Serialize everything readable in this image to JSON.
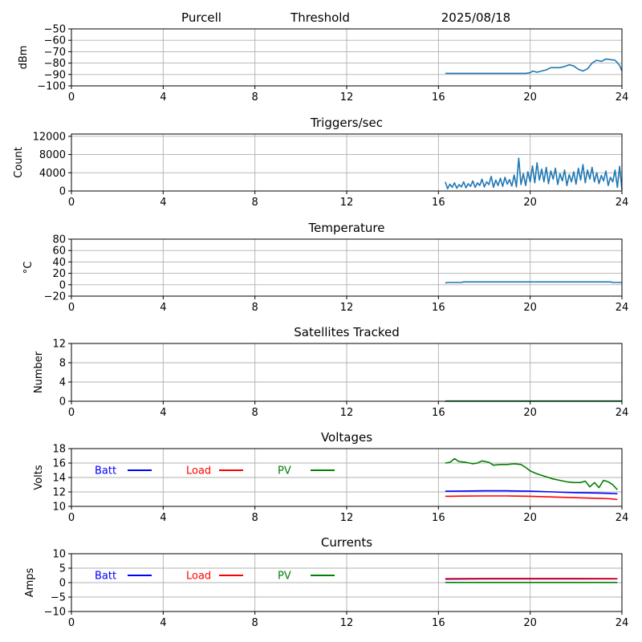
{
  "header": {
    "station": "Purcell",
    "mode": "Threshold",
    "date": "2025/08/18"
  },
  "colors": {
    "series": "#1f77b4",
    "batt": "#0000ff",
    "load": "#ff0000",
    "pv": "#008000",
    "grid": "#b0b0b0",
    "axes": "#000000"
  },
  "chart_data": [
    {
      "id": "signal",
      "type": "line",
      "title": "",
      "xlabel": "",
      "ylabel": "dBm",
      "xlim": [
        0,
        24
      ],
      "ylim": [
        -100,
        -50
      ],
      "xticks": [
        0,
        4,
        8,
        12,
        16,
        20,
        24
      ],
      "xtick_labels": [
        "0",
        "4",
        "8",
        "12",
        "16",
        "20",
        "24"
      ],
      "yticks": [
        -100,
        -90,
        -80,
        -70,
        -60,
        -50
      ],
      "ytick_labels": [
        "−100",
        "−90",
        "−80",
        "−70",
        "−60",
        "−50"
      ],
      "grid": true,
      "series": [
        {
          "color": "#1f77b4",
          "x": [
            16.3,
            16.6,
            17.0,
            17.5,
            18.0,
            18.5,
            19.0,
            19.5,
            19.8,
            20.0,
            20.1,
            20.3,
            20.5,
            20.7,
            20.9,
            21.1,
            21.3,
            21.5,
            21.7,
            21.9,
            22.1,
            22.3,
            22.5,
            22.7,
            22.9,
            23.1,
            23.3,
            23.5,
            23.7,
            23.9,
            24.0
          ],
          "y": [
            -89,
            -89,
            -89,
            -89,
            -89,
            -89,
            -89,
            -89,
            -89,
            -88.5,
            -87,
            -88,
            -87,
            -86,
            -84,
            -84,
            -84,
            -83,
            -81.5,
            -82.5,
            -85.5,
            -87,
            -85,
            -80,
            -77.5,
            -78.5,
            -76.5,
            -77,
            -77.5,
            -82,
            -87
          ]
        }
      ]
    },
    {
      "id": "triggers",
      "type": "line",
      "title": "Triggers/sec",
      "xlabel": "",
      "ylabel": "Count",
      "xlim": [
        0,
        24
      ],
      "ylim": [
        0,
        12500
      ],
      "xticks": [
        0,
        4,
        8,
        12,
        16,
        20,
        24
      ],
      "xtick_labels": [
        "0",
        "4",
        "8",
        "12",
        "16",
        "20",
        "24"
      ],
      "yticks": [
        0,
        4000,
        8000,
        12000
      ],
      "ytick_labels": [
        "0",
        "4000",
        "8000",
        "12000"
      ],
      "grid": true,
      "series": [
        {
          "color": "#1f77b4",
          "x": [
            16.3,
            16.4,
            16.5,
            16.6,
            16.7,
            16.8,
            16.9,
            17.0,
            17.1,
            17.2,
            17.3,
            17.4,
            17.5,
            17.6,
            17.7,
            17.8,
            17.9,
            18.0,
            18.1,
            18.2,
            18.3,
            18.4,
            18.5,
            18.6,
            18.7,
            18.8,
            18.9,
            19.0,
            19.1,
            19.2,
            19.3,
            19.4,
            19.5,
            19.6,
            19.7,
            19.8,
            19.9,
            20.0,
            20.1,
            20.2,
            20.3,
            20.4,
            20.5,
            20.6,
            20.7,
            20.8,
            20.9,
            21.0,
            21.1,
            21.2,
            21.3,
            21.4,
            21.5,
            21.6,
            21.7,
            21.8,
            21.9,
            22.0,
            22.1,
            22.2,
            22.3,
            22.4,
            22.5,
            22.6,
            22.7,
            22.8,
            22.9,
            23.0,
            23.1,
            23.2,
            23.3,
            23.4,
            23.5,
            23.6,
            23.7,
            23.8,
            23.9,
            24.0
          ],
          "y": [
            2000,
            500,
            1500,
            800,
            1800,
            600,
            1400,
            900,
            2000,
            700,
            1600,
            1000,
            2200,
            800,
            1800,
            1200,
            2600,
            900,
            2000,
            1400,
            3200,
            800,
            2400,
            1200,
            2800,
            1000,
            3000,
            1500,
            2500,
            1100,
            3500,
            900,
            7200,
            1400,
            3800,
            1200,
            4200,
            2000,
            5500,
            1800,
            6200,
            2400,
            4800,
            2000,
            5200,
            1600,
            4400,
            2600,
            5000,
            1400,
            3800,
            2200,
            4600,
            1200,
            3600,
            2000,
            4200,
            1500,
            5000,
            2400,
            5800,
            1800,
            4600,
            2600,
            5200,
            2000,
            4000,
            1600,
            3400,
            2200,
            4400,
            1200,
            3000,
            2000,
            4600,
            800,
            5400,
            300
          ]
        }
      ]
    },
    {
      "id": "temperature",
      "type": "line",
      "title": "Temperature",
      "xlabel": "",
      "ylabel": "°C",
      "xlim": [
        0,
        24
      ],
      "ylim": [
        -20,
        80
      ],
      "xticks": [
        0,
        4,
        8,
        12,
        16,
        20,
        24
      ],
      "xtick_labels": [
        "0",
        "4",
        "8",
        "12",
        "16",
        "20",
        "24"
      ],
      "yticks": [
        -20,
        0,
        20,
        40,
        60,
        80
      ],
      "ytick_labels": [
        "−20",
        "0",
        "20",
        "40",
        "60",
        "80"
      ],
      "grid": true,
      "series": [
        {
          "color": "#1f77b4",
          "x": [
            16.3,
            16.4,
            17.0,
            17.1,
            18.0,
            20.0,
            22.0,
            23.5,
            23.6,
            24.0
          ],
          "y": [
            3,
            4,
            4,
            5,
            5,
            5,
            5,
            5,
            4,
            4
          ]
        }
      ]
    },
    {
      "id": "satellites",
      "type": "line",
      "title": "Satellites Tracked",
      "xlabel": "",
      "ylabel": "Number",
      "xlim": [
        0,
        24
      ],
      "ylim": [
        0,
        12
      ],
      "xticks": [
        0,
        4,
        8,
        12,
        16,
        20,
        24
      ],
      "xtick_labels": [
        "0",
        "4",
        "8",
        "12",
        "16",
        "20",
        "24"
      ],
      "yticks": [
        0,
        4,
        8,
        12
      ],
      "ytick_labels": [
        "0",
        "4",
        "8",
        "12"
      ],
      "grid": true,
      "series": [
        {
          "color": "#1f77b4",
          "x": [
            16.3,
            24.0
          ],
          "y": [
            0,
            0
          ]
        },
        {
          "color": "#008000",
          "x": [
            16.3,
            24.0
          ],
          "y": [
            0.05,
            0.05
          ]
        }
      ]
    },
    {
      "id": "voltages",
      "type": "line",
      "title": "Voltages",
      "xlabel": "",
      "ylabel": "Volts",
      "xlim": [
        0,
        24
      ],
      "ylim": [
        10,
        18
      ],
      "xticks": [
        0,
        4,
        8,
        12,
        16,
        20,
        24
      ],
      "xtick_labels": [
        "0",
        "4",
        "8",
        "12",
        "16",
        "20",
        "24"
      ],
      "yticks": [
        10,
        12,
        14,
        16,
        18
      ],
      "ytick_labels": [
        "10",
        "12",
        "14",
        "16",
        "18"
      ],
      "grid": true,
      "legend": "inside-top-left",
      "series": [
        {
          "name": "Batt",
          "color": "#0000ff",
          "x": [
            16.3,
            16.5,
            17.0,
            18.0,
            19.0,
            20.0,
            21.0,
            22.0,
            23.0,
            23.5,
            23.8
          ],
          "y": [
            12.1,
            12.1,
            12.12,
            12.15,
            12.15,
            12.1,
            12.0,
            11.9,
            11.85,
            11.8,
            11.75
          ]
        },
        {
          "name": "Load",
          "color": "#ff0000",
          "x": [
            16.3,
            16.5,
            17.0,
            18.0,
            19.0,
            20.0,
            21.0,
            22.0,
            23.0,
            23.5,
            23.8
          ],
          "y": [
            11.4,
            11.4,
            11.42,
            11.45,
            11.45,
            11.4,
            11.3,
            11.2,
            11.1,
            11.05,
            10.95
          ]
        },
        {
          "name": "PV",
          "color": "#008000",
          "x": [
            16.3,
            16.5,
            16.7,
            16.9,
            17.2,
            17.5,
            17.7,
            17.9,
            18.2,
            18.4,
            18.7,
            19.0,
            19.3,
            19.6,
            19.8,
            20.0,
            20.3,
            20.7,
            21.0,
            21.3,
            21.6,
            21.9,
            22.2,
            22.4,
            22.6,
            22.8,
            23.0,
            23.2,
            23.4,
            23.6,
            23.8
          ],
          "y": [
            16.0,
            16.1,
            16.6,
            16.2,
            16.1,
            15.9,
            16.0,
            16.3,
            16.1,
            15.7,
            15.8,
            15.8,
            15.9,
            15.8,
            15.4,
            14.9,
            14.5,
            14.1,
            13.8,
            13.6,
            13.4,
            13.3,
            13.3,
            13.5,
            12.7,
            13.3,
            12.6,
            13.6,
            13.4,
            13.0,
            12.3
          ]
        }
      ]
    },
    {
      "id": "currents",
      "type": "line",
      "title": "Currents",
      "xlabel": "",
      "ylabel": "Amps",
      "xlim": [
        0,
        24
      ],
      "ylim": [
        -10,
        10
      ],
      "xticks": [
        0,
        4,
        8,
        12,
        16,
        20,
        24
      ],
      "xtick_labels": [
        "0",
        "4",
        "8",
        "12",
        "16",
        "20",
        "24"
      ],
      "yticks": [
        -10,
        -5,
        0,
        5,
        10
      ],
      "ytick_labels": [
        "−10",
        "−5",
        "0",
        "5",
        "10"
      ],
      "grid": true,
      "legend": "inside-top-left",
      "series": [
        {
          "name": "Batt",
          "color": "#0000ff",
          "x": [
            16.3,
            18.0,
            20.0,
            22.0,
            23.8
          ],
          "y": [
            1.2,
            1.3,
            1.3,
            1.3,
            1.3
          ]
        },
        {
          "name": "Load",
          "color": "#ff0000",
          "x": [
            16.3,
            18.0,
            20.0,
            22.0,
            23.8
          ],
          "y": [
            1.4,
            1.45,
            1.45,
            1.45,
            1.4
          ]
        },
        {
          "name": "PV",
          "color": "#008000",
          "x": [
            16.3,
            18.0,
            20.0,
            22.0,
            23.8
          ],
          "y": [
            0.05,
            0.05,
            0.05,
            0.05,
            0.05
          ]
        }
      ]
    }
  ]
}
